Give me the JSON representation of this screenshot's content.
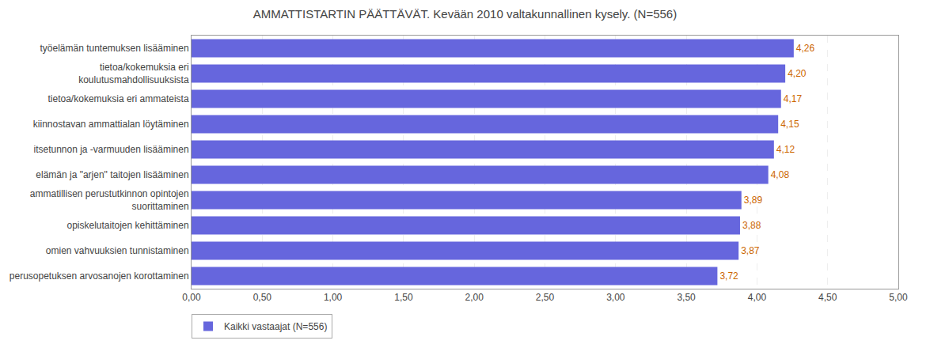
{
  "chart_data": {
    "type": "bar",
    "orientation": "horizontal",
    "title": "AMMATTISTARTIN PÄÄTTÄVÄT. Kevään 2010 valtakunnallinen kysely. (N=556)",
    "categories": [
      "työelämän tuntemuksen lisääminen",
      "tietoa/kokemuksia eri\nkoulutusmahdollisuuksista",
      "tietoa/kokemuksia eri ammateista",
      "kiinnostavan ammattialan löytäminen",
      "itsetunnon ja -varmuuden lisääminen",
      "elämän ja \"arjen\" taitojen lisääminen",
      "ammatillisen perustutkinnon opintojen\nsuorittaminen",
      "opiskelutaitojen kehittäminen",
      "omien vahvuuksien tunnistaminen",
      "perusopetuksen arvosanojen korottaminen"
    ],
    "series": [
      {
        "name": "Kaikki vastaajat (N=556)",
        "color": "#6666dd",
        "values": [
          4.26,
          4.2,
          4.17,
          4.15,
          4.12,
          4.08,
          3.89,
          3.88,
          3.87,
          3.72
        ],
        "value_labels": [
          "4,26",
          "4,20",
          "4,17",
          "4,15",
          "4,12",
          "4,08",
          "3,89",
          "3,88",
          "3,87",
          "3,72"
        ]
      }
    ],
    "data_labels": true,
    "xlim": [
      0,
      5.0
    ],
    "xticks": [
      {
        "value": 0.0,
        "label": "0,00"
      },
      {
        "value": 0.5,
        "label": "0,50"
      },
      {
        "value": 1.0,
        "label": "1,00"
      },
      {
        "value": 1.5,
        "label": "1,50"
      },
      {
        "value": 2.0,
        "label": "2,00"
      },
      {
        "value": 2.5,
        "label": "2,50"
      },
      {
        "value": 3.0,
        "label": "3,00"
      },
      {
        "value": 3.5,
        "label": "3,50"
      },
      {
        "value": 4.0,
        "label": "4,00"
      },
      {
        "value": 4.5,
        "label": "4,50"
      },
      {
        "value": 5.0,
        "label": "5,00"
      }
    ],
    "grid": true,
    "legend": "lower left"
  }
}
